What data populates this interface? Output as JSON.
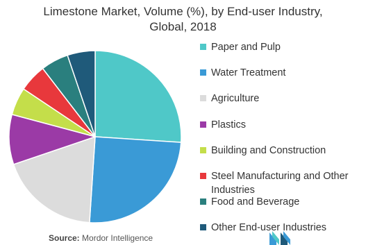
{
  "title_line1": "Limestone Market, Volume (%), by End-user Industry,",
  "title_line2": "Global, 2018",
  "source_label": "Source:",
  "source_text": "Mordor Intelligence",
  "chart_data": {
    "type": "pie",
    "title": "Limestone Market, Volume (%), by End-user Industry, Global, 2018",
    "categories": [
      "Paper and Pulp",
      "Water Treatment",
      "Agriculture",
      "Plastics",
      "Building and Construction",
      "Steel Manufacturing and Other Industries",
      "Food and Beverage",
      "Other End-user Industries"
    ],
    "values": [
      25,
      24,
      18,
      9,
      5,
      5,
      5,
      5
    ],
    "colors": [
      "#4fc8c8",
      "#3a9ad6",
      "#dcdcdc",
      "#9b3aa6",
      "#c4de4a",
      "#e8383c",
      "#2a7f7e",
      "#1f5a7a"
    ],
    "legend_position": "right"
  }
}
